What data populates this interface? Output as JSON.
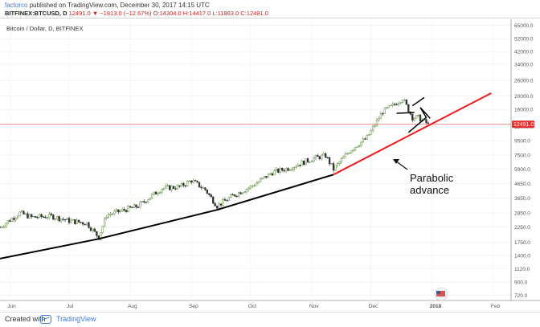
{
  "header": {
    "author": "factorco",
    "published": "published on TradingView.com, December 30, 2017 14:15 UTC",
    "symbol": "BITFINEX:BTCUSD, D",
    "ohlc": "12491.0 ▼ −1813.0 (−12.67%) O:14304.0 H:14417.0 L:11863.0 C:12491.0"
  },
  "chart_label": "Bitcoin / Dollar, D, BITFINEX",
  "annotation": {
    "line1": "Parabolic",
    "line2": "advance"
  },
  "price_tag": "12491.0",
  "footer": {
    "created_with": "Created with",
    "brand": "TradingView"
  },
  "colors": {
    "up": "#5a8b3a",
    "down": "#333333",
    "trend_black": "#000000",
    "trend_red": "#ee1c1c",
    "price_line": "#f08080",
    "price_tag_bg": "#e8312e"
  },
  "chart_data": {
    "type": "candlestick",
    "title": "Bitcoin / Dollar, D, BITFINEX",
    "x_ticks": [
      "Jun",
      "Jul",
      "Aug",
      "Sep",
      "Oct",
      "Nov",
      "Dec",
      "2018",
      "Feb"
    ],
    "y_ticks": [
      720.0,
      900.0,
      1120.0,
      1400.0,
      1750.0,
      2250.0,
      2850.0,
      3650.0,
      4650.0,
      5900.0,
      7500.0,
      9500.0,
      12000.0,
      16000.0,
      20000.0,
      26000.0,
      34000.0,
      42000.0,
      52000.0,
      65000.0
    ],
    "y_scale": "log",
    "ylim": [
      680,
      70000
    ],
    "x_range": [
      "2017-05-27",
      "2018-02-10"
    ],
    "last_price": 12491.0,
    "grid": true,
    "price_path": [
      [
        "2017-05-27",
        2250
      ],
      [
        "2017-06-06",
        2850
      ],
      [
        "2017-06-12",
        2650
      ],
      [
        "2017-06-22",
        2700
      ],
      [
        "2017-07-01",
        2500
      ],
      [
        "2017-07-10",
        2400
      ],
      [
        "2017-07-16",
        1900
      ],
      [
        "2017-07-20",
        2750
      ],
      [
        "2017-08-05",
        3200
      ],
      [
        "2017-08-17",
        4300
      ],
      [
        "2017-08-26",
        4400
      ],
      [
        "2017-09-01",
        4900
      ],
      [
        "2017-09-08",
        4200
      ],
      [
        "2017-09-14",
        3200
      ],
      [
        "2017-09-22",
        3800
      ],
      [
        "2017-10-01",
        4400
      ],
      [
        "2017-10-12",
        5600
      ],
      [
        "2017-10-20",
        6000
      ],
      [
        "2017-11-02",
        7100
      ],
      [
        "2017-11-08",
        7400
      ],
      [
        "2017-11-12",
        5900
      ],
      [
        "2017-11-20",
        8000
      ],
      [
        "2017-11-29",
        10000
      ],
      [
        "2017-12-07",
        15500
      ],
      [
        "2017-12-12",
        17000
      ],
      [
        "2017-12-17",
        19300
      ],
      [
        "2017-12-22",
        14000
      ],
      [
        "2017-12-25",
        14000
      ],
      [
        "2017-12-30",
        12491
      ]
    ],
    "trendlines": [
      {
        "color": "black",
        "points": [
          [
            "2017-05-27",
            1330
          ],
          [
            "2017-07-16",
            1850
          ],
          [
            "2017-09-14",
            3000
          ],
          [
            "2017-11-12",
            5400
          ]
        ]
      },
      {
        "color": "red",
        "points": [
          [
            "2017-11-12",
            5400
          ],
          [
            "2018-01-31",
            21000
          ]
        ]
      }
    ]
  }
}
